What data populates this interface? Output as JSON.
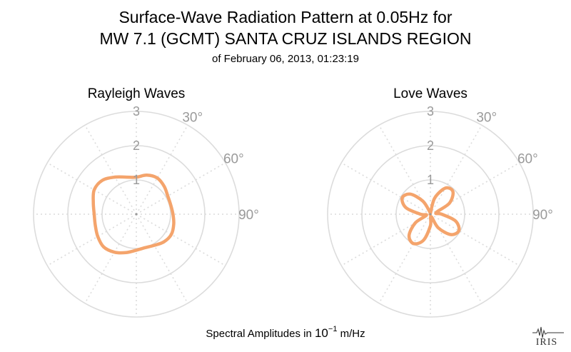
{
  "figure": {
    "title_line1": "Surface-Wave Radiation Pattern at 0.05Hz for",
    "title_line2": "MW 7.1 (GCMT) SANTA CRUZ ISLANDS REGION",
    "subtitle": "of February 06, 2013, 01:23:19",
    "caption_prefix": "Spectral Amplitudes in ",
    "caption_base": "10",
    "caption_exp": "−1",
    "caption_suffix": " m/Hz",
    "logo_text": "IRIS",
    "line_color": "#f4a46c",
    "grid_color": "#dcdcdc",
    "tick_color": "#9a9a9a"
  },
  "chart_data": [
    {
      "type": "polar-line",
      "title": "Rayleigh Waves",
      "r_ticks": [
        "1",
        "2",
        "3"
      ],
      "angle_ticks": [
        "30°",
        "60°",
        "90°"
      ],
      "rlim": [
        0,
        3
      ],
      "grid": true,
      "theta_deg": [
        0,
        15,
        30,
        45,
        60,
        75,
        90,
        105,
        120,
        135,
        150,
        165,
        180,
        195,
        210,
        225,
        240,
        255,
        270,
        285,
        300,
        315,
        330,
        345
      ],
      "r": [
        1.08,
        1.18,
        1.22,
        1.15,
        1.06,
        1.04,
        1.07,
        1.13,
        1.18,
        1.14,
        1.05,
        1.01,
        1.05,
        1.16,
        1.28,
        1.35,
        1.3,
        1.24,
        1.23,
        1.3,
        1.42,
        1.4,
        1.25,
        1.12
      ]
    },
    {
      "type": "polar-line",
      "title": "Love Waves",
      "r_ticks": [
        "1",
        "2",
        "3"
      ],
      "angle_ticks": [
        "30°",
        "60°",
        "90°"
      ],
      "rlim": [
        0,
        3
      ],
      "grid": true,
      "theta_deg": [
        0,
        15,
        30,
        45,
        60,
        75,
        90,
        105,
        120,
        135,
        150,
        165,
        180,
        195,
        210,
        225,
        240,
        255,
        270,
        285,
        300,
        315,
        330,
        345
      ],
      "r": [
        0.03,
        0.49,
        0.88,
        0.93,
        0.64,
        0.17,
        0.33,
        0.76,
        0.96,
        0.84,
        0.46,
        0.07,
        0.34,
        0.79,
        0.99,
        0.88,
        0.51,
        0.12,
        0.29,
        0.74,
        0.95,
        0.83,
        0.44,
        0.07
      ]
    }
  ]
}
